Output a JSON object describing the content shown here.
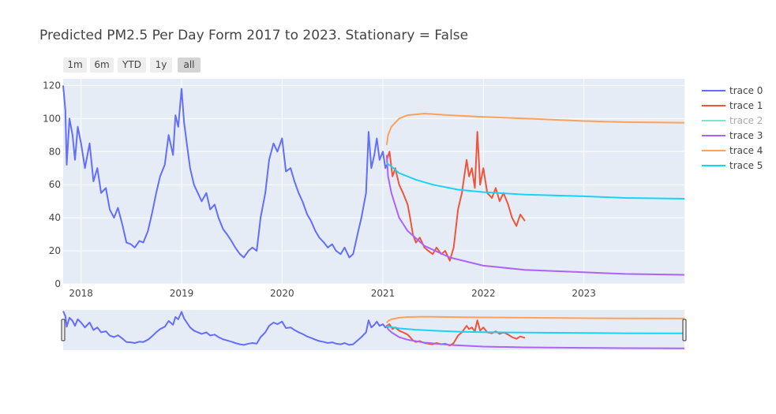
{
  "range_selector": {
    "buttons": [
      {
        "label": "1m"
      },
      {
        "label": "6m"
      },
      {
        "label": "YTD"
      },
      {
        "label": "1y"
      },
      {
        "label": "all"
      }
    ],
    "active": "all"
  },
  "colors": {
    "plot_bg": "#e5ecf6",
    "grid": "#ffffff",
    "text": "#444444"
  },
  "chart_data": {
    "type": "line",
    "title": "Predicted PM2.5 Per Day Form 2017 to 2023. Stationary = False",
    "xlabel": "",
    "ylabel": "",
    "x_range": [
      "2017-10-28",
      "2024-01-01"
    ],
    "ylim": [
      0,
      124
    ],
    "x_ticks": [
      "2018",
      "2019",
      "2020",
      "2021",
      "2022",
      "2023"
    ],
    "y_ticks": [
      0,
      20,
      40,
      60,
      80,
      100,
      120
    ],
    "grid": true,
    "legend_position": "right",
    "rangeslider": true,
    "series": [
      {
        "name": "trace 0",
        "color": "#636efa",
        "points": [
          [
            "2017-10-28",
            120
          ],
          [
            "2017-11-05",
            105
          ],
          [
            "2017-11-10",
            72
          ],
          [
            "2017-11-20",
            100
          ],
          [
            "2017-12-01",
            90
          ],
          [
            "2017-12-10",
            75
          ],
          [
            "2017-12-20",
            95
          ],
          [
            "2018-01-01",
            85
          ],
          [
            "2018-01-15",
            70
          ],
          [
            "2018-02-01",
            85
          ],
          [
            "2018-02-15",
            62
          ],
          [
            "2018-03-01",
            70
          ],
          [
            "2018-03-15",
            55
          ],
          [
            "2018-04-01",
            58
          ],
          [
            "2018-04-15",
            45
          ],
          [
            "2018-05-01",
            40
          ],
          [
            "2018-05-15",
            46
          ],
          [
            "2018-06-01",
            35
          ],
          [
            "2018-06-15",
            25
          ],
          [
            "2018-07-01",
            24
          ],
          [
            "2018-07-15",
            22
          ],
          [
            "2018-08-01",
            26
          ],
          [
            "2018-08-15",
            25
          ],
          [
            "2018-09-01",
            32
          ],
          [
            "2018-09-15",
            42
          ],
          [
            "2018-10-01",
            55
          ],
          [
            "2018-10-15",
            65
          ],
          [
            "2018-11-01",
            72
          ],
          [
            "2018-11-15",
            90
          ],
          [
            "2018-12-01",
            78
          ],
          [
            "2018-12-10",
            102
          ],
          [
            "2018-12-20",
            95
          ],
          [
            "2019-01-01",
            118
          ],
          [
            "2019-01-10",
            98
          ],
          [
            "2019-01-20",
            85
          ],
          [
            "2019-02-01",
            70
          ],
          [
            "2019-02-15",
            60
          ],
          [
            "2019-03-01",
            55
          ],
          [
            "2019-03-15",
            50
          ],
          [
            "2019-04-01",
            55
          ],
          [
            "2019-04-15",
            45
          ],
          [
            "2019-05-01",
            48
          ],
          [
            "2019-05-15",
            40
          ],
          [
            "2019-06-01",
            33
          ],
          [
            "2019-06-15",
            30
          ],
          [
            "2019-07-01",
            26
          ],
          [
            "2019-07-15",
            22
          ],
          [
            "2019-08-01",
            18
          ],
          [
            "2019-08-15",
            16
          ],
          [
            "2019-09-01",
            20
          ],
          [
            "2019-09-15",
            22
          ],
          [
            "2019-10-01",
            20
          ],
          [
            "2019-10-15",
            40
          ],
          [
            "2019-11-01",
            55
          ],
          [
            "2019-11-15",
            75
          ],
          [
            "2019-12-01",
            85
          ],
          [
            "2019-12-15",
            80
          ],
          [
            "2020-01-01",
            88
          ],
          [
            "2020-01-15",
            68
          ],
          [
            "2020-02-01",
            70
          ],
          [
            "2020-02-15",
            62
          ],
          [
            "2020-03-01",
            55
          ],
          [
            "2020-03-15",
            50
          ],
          [
            "2020-04-01",
            42
          ],
          [
            "2020-04-15",
            38
          ],
          [
            "2020-05-01",
            32
          ],
          [
            "2020-05-15",
            28
          ],
          [
            "2020-06-01",
            25
          ],
          [
            "2020-06-15",
            22
          ],
          [
            "2020-07-01",
            24
          ],
          [
            "2020-07-15",
            20
          ],
          [
            "2020-08-01",
            18
          ],
          [
            "2020-08-15",
            22
          ],
          [
            "2020-09-01",
            16
          ],
          [
            "2020-09-15",
            18
          ],
          [
            "2020-10-01",
            30
          ],
          [
            "2020-10-15",
            40
          ],
          [
            "2020-11-01",
            55
          ],
          [
            "2020-11-10",
            92
          ],
          [
            "2020-11-20",
            70
          ],
          [
            "2020-12-01",
            78
          ],
          [
            "2020-12-10",
            88
          ],
          [
            "2020-12-20",
            75
          ],
          [
            "2021-01-01",
            80
          ],
          [
            "2021-01-10",
            70
          ],
          [
            "2021-01-15",
            72
          ]
        ]
      },
      {
        "name": "trace 1",
        "color": "#ef553b",
        "points": [
          [
            "2021-01-15",
            75
          ],
          [
            "2021-01-25",
            80
          ],
          [
            "2021-02-05",
            65
          ],
          [
            "2021-02-15",
            70
          ],
          [
            "2021-03-01",
            60
          ],
          [
            "2021-03-15",
            55
          ],
          [
            "2021-04-01",
            48
          ],
          [
            "2021-04-10",
            40
          ],
          [
            "2021-04-20",
            30
          ],
          [
            "2021-05-01",
            25
          ],
          [
            "2021-05-15",
            28
          ],
          [
            "2021-06-01",
            22
          ],
          [
            "2021-06-15",
            20
          ],
          [
            "2021-07-01",
            18
          ],
          [
            "2021-07-15",
            22
          ],
          [
            "2021-08-01",
            18
          ],
          [
            "2021-08-15",
            20
          ],
          [
            "2021-09-01",
            14
          ],
          [
            "2021-09-15",
            22
          ],
          [
            "2021-10-01",
            45
          ],
          [
            "2021-10-15",
            55
          ],
          [
            "2021-11-01",
            75
          ],
          [
            "2021-11-10",
            65
          ],
          [
            "2021-11-20",
            70
          ],
          [
            "2021-12-01",
            58
          ],
          [
            "2021-12-10",
            92
          ],
          [
            "2021-12-20",
            60
          ],
          [
            "2022-01-01",
            70
          ],
          [
            "2022-01-15",
            55
          ],
          [
            "2022-02-01",
            52
          ],
          [
            "2022-02-15",
            58
          ],
          [
            "2022-03-01",
            50
          ],
          [
            "2022-03-15",
            55
          ],
          [
            "2022-04-01",
            48
          ],
          [
            "2022-04-15",
            40
          ],
          [
            "2022-05-01",
            35
          ],
          [
            "2022-05-15",
            42
          ],
          [
            "2022-06-01",
            38
          ]
        ]
      },
      {
        "name": "trace 2",
        "color": "#00cc96",
        "hidden": true,
        "points": []
      },
      {
        "name": "trace 3",
        "color": "#ab63fa",
        "points": [
          [
            "2021-01-15",
            78
          ],
          [
            "2021-01-20",
            65
          ],
          [
            "2021-02-01",
            55
          ],
          [
            "2021-03-01",
            40
          ],
          [
            "2021-04-01",
            32
          ],
          [
            "2021-06-01",
            23
          ],
          [
            "2021-09-01",
            16
          ],
          [
            "2022-01-01",
            11
          ],
          [
            "2022-06-01",
            8.5
          ],
          [
            "2023-01-01",
            7
          ],
          [
            "2023-06-01",
            6
          ],
          [
            "2024-01-01",
            5.5
          ]
        ]
      },
      {
        "name": "trace 4",
        "color": "#ffa15a",
        "points": [
          [
            "2021-01-15",
            84
          ],
          [
            "2021-01-20",
            90
          ],
          [
            "2021-02-01",
            95
          ],
          [
            "2021-03-01",
            100
          ],
          [
            "2021-04-01",
            102
          ],
          [
            "2021-06-01",
            103
          ],
          [
            "2021-09-01",
            102
          ],
          [
            "2022-01-01",
            101
          ],
          [
            "2022-06-01",
            100
          ],
          [
            "2023-01-01",
            98.5
          ],
          [
            "2023-06-01",
            97.8
          ],
          [
            "2024-01-01",
            97.5
          ]
        ]
      },
      {
        "name": "trace 5",
        "color": "#19d3f3",
        "points": [
          [
            "2021-01-15",
            73
          ],
          [
            "2021-02-01",
            71
          ],
          [
            "2021-03-01",
            67
          ],
          [
            "2021-05-01",
            63
          ],
          [
            "2021-07-01",
            60
          ],
          [
            "2021-10-01",
            57
          ],
          [
            "2022-01-01",
            55.5
          ],
          [
            "2022-06-01",
            54
          ],
          [
            "2023-01-01",
            53
          ],
          [
            "2023-06-01",
            52
          ],
          [
            "2024-01-01",
            51.5
          ]
        ]
      }
    ]
  }
}
